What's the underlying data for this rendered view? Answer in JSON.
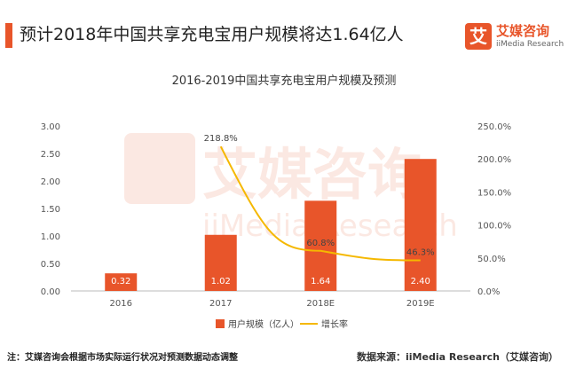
{
  "header": {
    "title": "预计2018年中国共享充电宝用户规模将达1.64亿人",
    "accent_color": "#e8552a"
  },
  "logo": {
    "mark": "艾",
    "name_cn": "艾媒咨询",
    "name_en": "iiMedia Research",
    "color": "#e8552a"
  },
  "watermark": {
    "cn": "艾媒咨询",
    "en": "iiMedia Research"
  },
  "chart_data": {
    "type": "bar",
    "title": "2016-2019中国共享充电宝用户规模及预测",
    "categories": [
      "2016",
      "2017",
      "2018E",
      "2019E"
    ],
    "series": [
      {
        "name": "用户规模（亿人）",
        "type": "bar",
        "axis": "left",
        "color": "#e8552a",
        "values": [
          0.32,
          1.02,
          1.64,
          2.4
        ],
        "labels": [
          "0.32",
          "1.02",
          "1.64",
          "2.40"
        ]
      },
      {
        "name": "增长率",
        "type": "line",
        "axis": "right",
        "color": "#f5b800",
        "values": [
          null,
          218.8,
          60.8,
          46.3
        ],
        "labels": [
          "",
          "218.8%",
          "60.8%",
          "46.3%"
        ]
      }
    ],
    "y_left": {
      "min": 0,
      "max": 3,
      "ticks": [
        "0.00",
        "0.50",
        "1.00",
        "1.50",
        "2.00",
        "2.50",
        "3.00"
      ]
    },
    "y_right": {
      "min": 0,
      "max": 250,
      "ticks": [
        "0.0%",
        "50.0%",
        "100.0%",
        "150.0%",
        "200.0%",
        "250.0%"
      ]
    },
    "grid": false,
    "legend_position": "bottom"
  },
  "footer": {
    "note": "注：艾媒咨询会根据市场实际运行状况对预测数据动态调整",
    "source": "数据来源：iiMedia Research（艾媒咨询）"
  }
}
